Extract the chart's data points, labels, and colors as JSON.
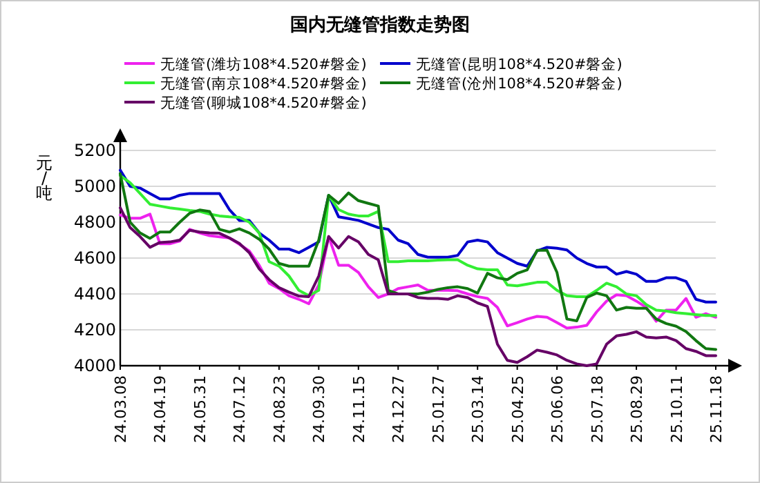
{
  "chart_data": {
    "type": "line",
    "title": "国内无缝管指数走势图",
    "ylabel": "元/吨",
    "categories": [
      "24.03.08",
      null,
      null,
      null,
      "24.04.19",
      null,
      null,
      null,
      "24.05.31",
      null,
      null,
      null,
      "24.07.12",
      null,
      null,
      null,
      "24.08.23",
      null,
      null,
      null,
      "24.09.30",
      null,
      null,
      null,
      "24.11.15",
      null,
      null,
      null,
      "24.12.27",
      null,
      null,
      null,
      "25.01.27",
      null,
      null,
      null,
      "25.03.14",
      null,
      null,
      null,
      "25.04.25",
      null,
      null,
      null,
      "25.06.06",
      null,
      null,
      null,
      "25.07.18",
      null,
      null,
      null,
      "25.08.29",
      null,
      null,
      null,
      "25.10.11",
      null,
      null,
      null,
      "25.11.18"
    ],
    "ylim": [
      4000,
      5200
    ],
    "yticks": [
      4000,
      4200,
      4400,
      4600,
      4800,
      5000,
      5200
    ],
    "grid": "y",
    "legend": "top",
    "marker": "none",
    "line_style": "solid",
    "series": [
      {
        "name": "无缝管(潍坊108*4.520#磐金)",
        "color": "#ee22ee",
        "values": [
          4840,
          4822,
          4822,
          4845,
          4680,
          4680,
          4695,
          4760,
          4740,
          4725,
          4718,
          4712,
          4677,
          4640,
          4560,
          4460,
          4430,
          4390,
          4370,
          4345,
          4450,
          4720,
          4560,
          4560,
          4520,
          4440,
          4380,
          4400,
          4430,
          4440,
          4450,
          4420,
          4420,
          4420,
          4418,
          4400,
          4385,
          4375,
          4325,
          4222,
          4240,
          4260,
          4275,
          4270,
          4240,
          4210,
          4215,
          4225,
          4300,
          4360,
          4395,
          4390,
          4360,
          4325,
          4248,
          4310,
          4310,
          4375,
          4270,
          4290,
          4270
        ]
      },
      {
        "name": "无缝管(昆明108*4.520#磐金)",
        "color": "#0000cc",
        "values": [
          5090,
          5000,
          4990,
          4960,
          4930,
          4930,
          4950,
          4960,
          4960,
          4960,
          4960,
          4870,
          4810,
          4810,
          4740,
          4700,
          4650,
          4650,
          4630,
          4660,
          4690,
          4950,
          4830,
          4820,
          4810,
          4790,
          4770,
          4760,
          4700,
          4680,
          4620,
          4605,
          4605,
          4605,
          4615,
          4690,
          4700,
          4690,
          4630,
          4600,
          4570,
          4555,
          4640,
          4660,
          4655,
          4645,
          4600,
          4570,
          4550,
          4550,
          4510,
          4525,
          4510,
          4470,
          4470,
          4490,
          4490,
          4470,
          4370,
          4355,
          4355
        ]
      },
      {
        "name": "无缝管(南京108*4.520#磐金)",
        "color": "#33ee33",
        "values": [
          5060,
          5020,
          4960,
          4900,
          4890,
          4880,
          4873,
          4865,
          4860,
          4845,
          4835,
          4830,
          4827,
          4800,
          4740,
          4580,
          4555,
          4500,
          4420,
          4390,
          4420,
          4950,
          4870,
          4845,
          4835,
          4835,
          4860,
          4580,
          4580,
          4585,
          4585,
          4585,
          4588,
          4590,
          4590,
          4560,
          4540,
          4535,
          4535,
          4450,
          4445,
          4455,
          4465,
          4465,
          4420,
          4390,
          4385,
          4385,
          4420,
          4460,
          4440,
          4400,
          4390,
          4340,
          4310,
          4305,
          4295,
          4290,
          4285,
          4280,
          4280
        ]
      },
      {
        "name": "无缝管(沧州108*4.520#磐金)",
        "color": "#117711",
        "values": [
          5070,
          4800,
          4740,
          4710,
          4745,
          4745,
          4800,
          4850,
          4868,
          4860,
          4760,
          4745,
          4763,
          4740,
          4705,
          4650,
          4570,
          4555,
          4555,
          4555,
          4700,
          4950,
          4905,
          4963,
          4920,
          4905,
          4890,
          4420,
          4400,
          4400,
          4400,
          4410,
          4425,
          4435,
          4440,
          4430,
          4405,
          4515,
          4490,
          4480,
          4515,
          4534,
          4643,
          4643,
          4520,
          4260,
          4250,
          4380,
          4405,
          4390,
          4310,
          4325,
          4320,
          4320,
          4260,
          4235,
          4220,
          4190,
          4140,
          4095,
          4090
        ]
      },
      {
        "name": "无缝管(聊城108*4.520#磐金)",
        "color": "#660066",
        "values": [
          4880,
          4770,
          4720,
          4660,
          4687,
          4690,
          4700,
          4755,
          4745,
          4740,
          4738,
          4712,
          4682,
          4630,
          4540,
          4480,
          4435,
          4410,
          4388,
          4385,
          4500,
          4720,
          4656,
          4720,
          4690,
          4620,
          4590,
          4400,
          4400,
          4400,
          4380,
          4375,
          4375,
          4370,
          4390,
          4380,
          4350,
          4330,
          4120,
          4030,
          4018,
          4050,
          4087,
          4075,
          4060,
          4030,
          4010,
          4000,
          4010,
          4120,
          4166,
          4175,
          4189,
          4160,
          4155,
          4160,
          4140,
          4095,
          4080,
          4056,
          4056
        ]
      }
    ]
  }
}
